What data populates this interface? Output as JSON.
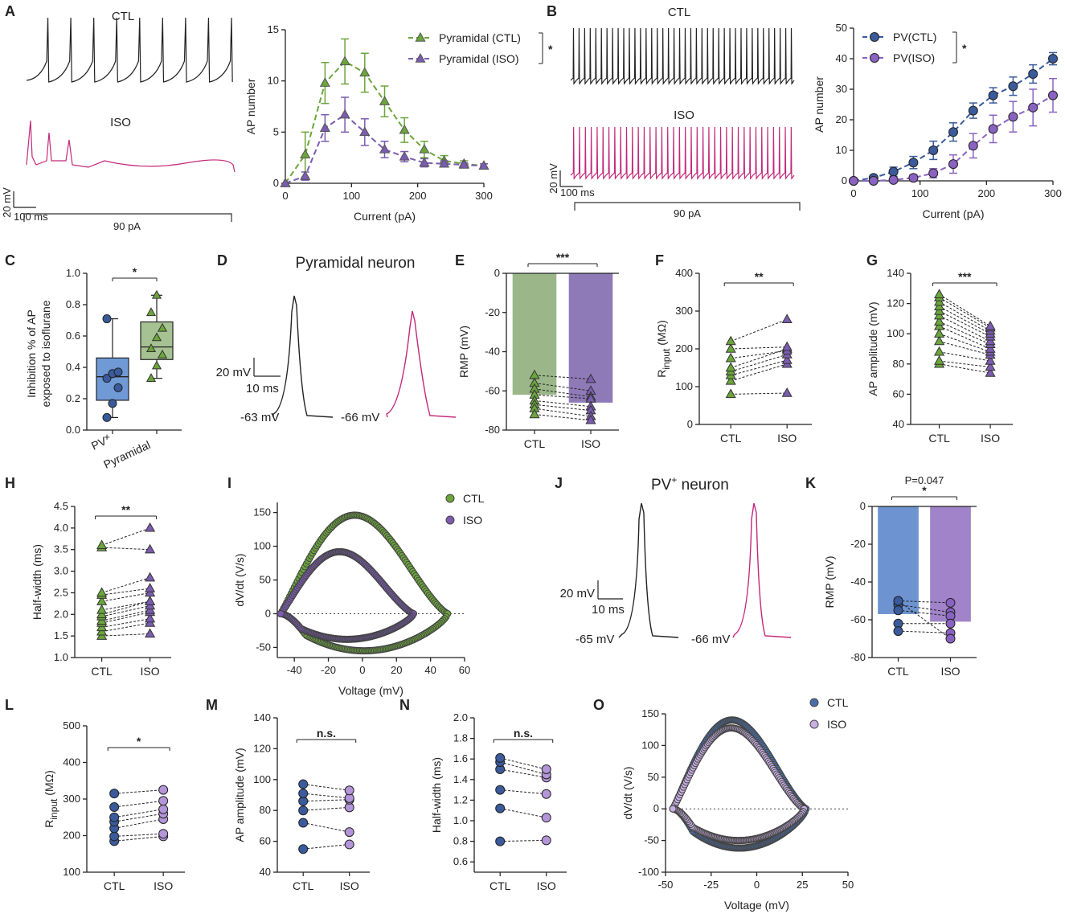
{
  "colors": {
    "ctl_pyr": "#6ba53b",
    "iso_pyr": "#7b5cb0",
    "ctl_pv": "#3a5a9b",
    "iso_pv": "#8a62c2",
    "trace_ctl": "#222222",
    "trace_iso": "#c2287a",
    "bar_ctl_pyr": "#9bb789",
    "bar_iso_pyr": "#8f7ab8",
    "bar_ctl_pv": "#6d93d0",
    "bar_iso_pv": "#a083c9",
    "box_pv": "#6f9ad6",
    "box_pyr": "#a6c293"
  },
  "panels": {
    "A": "A",
    "B": "B",
    "C": "C",
    "D": "D",
    "E": "E",
    "F": "F",
    "G": "G",
    "H": "H",
    "I": "I",
    "J": "J",
    "K": "K",
    "L": "L",
    "M": "M",
    "N": "N",
    "O": "O"
  },
  "traces": {
    "A": {
      "ctl": "CTL",
      "iso": "ISO",
      "scale_v": "20 mV",
      "scale_t": "100 ms",
      "step": "90 pA"
    },
    "B": {
      "ctl": "CTL",
      "iso": "ISO",
      "scale_v": "20 mV",
      "scale_t": "100 ms",
      "step": "90 pA"
    },
    "D": {
      "title": "Pyramidal neuron",
      "scale_v": "20 mV",
      "scale_t": "10 ms",
      "rmp_ctl": "-63 mV",
      "rmp_iso": "-66 mV"
    },
    "J": {
      "title_main": "PV",
      "title_sup": "+",
      "title_rest": " neuron",
      "scale_v": "20 mV",
      "scale_t": "10 ms",
      "rmp_ctl": "-65 mV",
      "rmp_iso": "-66 mV"
    }
  },
  "chart_data": [
    {
      "id": "A",
      "type": "line",
      "title": "",
      "xlabel": "Current (pA)",
      "ylabel": "AP number",
      "xlim": [
        0,
        300
      ],
      "ylim": [
        0,
        15
      ],
      "xticks": [
        0,
        100,
        200,
        300
      ],
      "yticks": [
        0,
        5,
        10,
        15
      ],
      "x": [
        0,
        30,
        60,
        90,
        120,
        150,
        180,
        210,
        240,
        270,
        300
      ],
      "series": [
        {
          "name": "Pyramidal (CTL)",
          "values": [
            0,
            2.8,
            9.8,
            11.9,
            10.8,
            8.0,
            5.2,
            3.3,
            2.2,
            1.9,
            1.7
          ],
          "err": [
            0,
            2.2,
            2.0,
            2.2,
            1.9,
            1.5,
            1.2,
            0.8,
            0.5,
            0.3,
            0.2
          ]
        },
        {
          "name": "Pyramidal (ISO)",
          "values": [
            0,
            0.7,
            5.4,
            6.7,
            5.0,
            3.3,
            2.6,
            2.0,
            1.9,
            1.8,
            1.7
          ],
          "err": [
            0,
            0.4,
            1.3,
            1.7,
            1.3,
            0.8,
            0.5,
            0.4,
            0.3,
            0.2,
            0.2
          ]
        }
      ],
      "significance": "*"
    },
    {
      "id": "B",
      "type": "line",
      "title": "",
      "xlabel": "Current (pA)",
      "ylabel": "AP number",
      "xlim": [
        0,
        300
      ],
      "ylim": [
        0,
        50
      ],
      "xticks": [
        0,
        100,
        200,
        300
      ],
      "yticks": [
        0,
        10,
        20,
        30,
        40,
        50
      ],
      "x": [
        0,
        30,
        60,
        90,
        120,
        150,
        180,
        210,
        240,
        270,
        300
      ],
      "series": [
        {
          "name": "PV(CTL)",
          "values": [
            0,
            1,
            3,
            6,
            10,
            16,
            23,
            28,
            31,
            35,
            40
          ],
          "err": [
            0,
            0.6,
            1.5,
            2,
            3,
            3,
            2.5,
            2.5,
            3,
            3,
            2
          ]
        },
        {
          "name": "PV(ISO)",
          "values": [
            0,
            0,
            0.3,
            1,
            2.5,
            5.5,
            11.5,
            17,
            21,
            24,
            28
          ],
          "err": [
            0,
            0,
            0.5,
            1,
            1.5,
            3,
            4,
            4.5,
            5,
            6,
            5.5
          ]
        }
      ],
      "significance": "*"
    },
    {
      "id": "C",
      "type": "box",
      "title": "",
      "xlabel": "",
      "ylabel_line1": "Inhibition % of AP",
      "ylabel_line2": "exposed to isoflurane",
      "ylim": [
        0,
        1
      ],
      "yticks": [
        "0.0",
        "0.2",
        "0.4",
        "0.6",
        "0.8",
        "1.0"
      ],
      "categories": [
        "PV",
        "Pyramidal"
      ],
      "category_sup": [
        "+",
        ""
      ],
      "boxes": [
        {
          "min": 0.08,
          "q1": 0.19,
          "median": 0.34,
          "q3": 0.46,
          "max": 0.71,
          "points": [
            0.08,
            0.17,
            0.27,
            0.33,
            0.36,
            0.37,
            0.71
          ]
        },
        {
          "min": 0.33,
          "q1": 0.45,
          "median": 0.53,
          "q3": 0.69,
          "max": 0.86,
          "points": [
            0.33,
            0.41,
            0.48,
            0.52,
            0.59,
            0.65,
            0.75,
            0.86
          ]
        }
      ],
      "significance": "*"
    },
    {
      "id": "E",
      "type": "bar",
      "title": "",
      "ylabel": "RMP (mV)",
      "ylim": [
        -80,
        0
      ],
      "yticks": [
        0,
        -20,
        -40,
        -60,
        -80
      ],
      "categories": [
        "CTL",
        "ISO"
      ],
      "values": [
        -62,
        -66
      ],
      "pairs": [
        [
          -52,
          -54
        ],
        [
          -56,
          -60
        ],
        [
          -59,
          -63
        ],
        [
          -62,
          -64
        ],
        [
          -65,
          -68
        ],
        [
          -67,
          -70
        ],
        [
          -69,
          -73
        ],
        [
          -72,
          -75
        ]
      ],
      "significance": "***"
    },
    {
      "id": "F",
      "type": "paired",
      "title": "",
      "ylabel_main": "R",
      "ylabel_sub": "input",
      "ylabel_unit": " (MΩ)",
      "ylim": [
        0,
        400
      ],
      "yticks": [
        0,
        100,
        200,
        300,
        400
      ],
      "categories": [
        "CTL",
        "ISO"
      ],
      "pairs": [
        [
          80,
          83
        ],
        [
          115,
          160
        ],
        [
          130,
          170
        ],
        [
          140,
          185
        ],
        [
          150,
          200
        ],
        [
          175,
          195
        ],
        [
          200,
          205
        ],
        [
          220,
          278
        ]
      ],
      "significance": "**"
    },
    {
      "id": "G",
      "type": "paired",
      "title": "",
      "ylabel": "AP amplitude  (mV)",
      "ylim": [
        40,
        140
      ],
      "yticks": [
        40,
        60,
        80,
        100,
        120,
        140
      ],
      "categories": [
        "CTL",
        "ISO"
      ],
      "pairs": [
        [
          80,
          74
        ],
        [
          82,
          78
        ],
        [
          88,
          82
        ],
        [
          95,
          86
        ],
        [
          100,
          88
        ],
        [
          105,
          90
        ],
        [
          108,
          93
        ],
        [
          112,
          95
        ],
        [
          115,
          98
        ],
        [
          118,
          100
        ],
        [
          121,
          102
        ],
        [
          124,
          104
        ],
        [
          126,
          105
        ]
      ],
      "significance": "***"
    },
    {
      "id": "H",
      "type": "paired",
      "title": "",
      "ylabel": "Half-width (ms)",
      "ylim": [
        1.0,
        4.5
      ],
      "yticks": [
        "1.0",
        "1.5",
        "2.0",
        "2.5",
        "3.0",
        "3.5",
        "4.0",
        "4.5"
      ],
      "categories": [
        "CTL",
        "ISO"
      ],
      "pairs": [
        [
          1.5,
          1.55
        ],
        [
          1.6,
          1.8
        ],
        [
          1.7,
          1.9
        ],
        [
          1.8,
          2.05
        ],
        [
          1.85,
          2.1
        ],
        [
          1.95,
          2.2
        ],
        [
          2.0,
          2.3
        ],
        [
          2.1,
          2.3
        ],
        [
          2.3,
          2.5
        ],
        [
          2.45,
          2.6
        ],
        [
          2.5,
          2.85
        ],
        [
          3.55,
          3.5
        ],
        [
          3.6,
          4.0
        ]
      ],
      "significance": "**"
    },
    {
      "id": "I",
      "type": "scatter",
      "title": "",
      "xlabel": "Voltage (mV)",
      "ylabel": "dV/dt (V/s)",
      "xlim": [
        -50,
        60
      ],
      "ylim": [
        -65,
        165
      ],
      "xticks": [
        -40,
        -20,
        0,
        20,
        40,
        60
      ],
      "yticks": [
        -50,
        0,
        50,
        100,
        150
      ],
      "series": [
        {
          "name": "CTL",
          "vmin": -48,
          "vmax": 50,
          "peak_up": 151,
          "peak_v": 2,
          "peak_down": -55,
          "down_v": 15
        },
        {
          "name": "ISO",
          "vmin": -48,
          "vmax": 30,
          "peak_up": 95,
          "peak_v": -13,
          "peak_down": -38,
          "down_v": 0
        }
      ]
    },
    {
      "id": "K",
      "type": "bar",
      "title": "",
      "ylabel": "RMP (mV)",
      "ylim": [
        -80,
        0
      ],
      "yticks": [
        0,
        -20,
        -40,
        -60,
        -80
      ],
      "categories": [
        "CTL",
        "ISO"
      ],
      "values": [
        -57,
        -61
      ],
      "pairs": [
        [
          -50,
          -51
        ],
        [
          -52,
          -56
        ],
        [
          -55,
          -58
        ],
        [
          -62,
          -62
        ],
        [
          -66,
          -67
        ],
        [
          -50,
          -70
        ]
      ],
      "significance": "*",
      "pvalue": "P=0.047"
    },
    {
      "id": "L",
      "type": "paired",
      "title": "",
      "ylabel_main": "R",
      "ylabel_sub": "input",
      "ylabel_unit": " (MΩ)",
      "ylim": [
        100,
        500
      ],
      "yticks": [
        100,
        200,
        300,
        400,
        500
      ],
      "categories": [
        "CTL",
        "ISO"
      ],
      "pairs": [
        [
          185,
          198
        ],
        [
          198,
          205
        ],
        [
          220,
          245
        ],
        [
          238,
          260
        ],
        [
          250,
          272
        ],
        [
          278,
          295
        ],
        [
          315,
          325
        ]
      ],
      "significance": "*"
    },
    {
      "id": "M",
      "type": "paired",
      "title": "",
      "ylabel": "AP amplitude  (mV)",
      "ylim": [
        40,
        140
      ],
      "yticks": [
        40,
        60,
        80,
        100,
        120,
        140
      ],
      "categories": [
        "CTL",
        "ISO"
      ],
      "pairs": [
        [
          55,
          58
        ],
        [
          72,
          66
        ],
        [
          80,
          82
        ],
        [
          86,
          87
        ],
        [
          91,
          88
        ],
        [
          97,
          93
        ]
      ],
      "significance": "n.s."
    },
    {
      "id": "N",
      "type": "paired",
      "title": "",
      "ylabel": "Half-width (ms)",
      "ylim": [
        0.5,
        2.0
      ],
      "yticks": [
        "0.6",
        "0.8",
        "1.0",
        "1.2",
        "1.4",
        "1.6",
        "1.8",
        "2.0"
      ],
      "categories": [
        "CTL",
        "ISO"
      ],
      "pairs": [
        [
          0.8,
          0.81
        ],
        [
          1.12,
          1.03
        ],
        [
          1.3,
          1.26
        ],
        [
          1.5,
          1.42
        ],
        [
          1.57,
          1.45
        ],
        [
          1.61,
          1.5
        ]
      ],
      "significance": "n.s."
    },
    {
      "id": "O",
      "type": "scatter",
      "title": "",
      "xlabel": "Voltage (mV)",
      "ylabel": "dV/dt (V/s)",
      "xlim": [
        -50,
        50
      ],
      "ylim": [
        -100,
        150
      ],
      "xticks": [
        -50,
        -25,
        0,
        25,
        50
      ],
      "yticks": [
        -100,
        -50,
        0,
        50,
        100,
        150
      ],
      "series": [
        {
          "name": "CTL",
          "vmin": -46,
          "vmax": 27,
          "peak_up": 145,
          "peak_v": -5,
          "peak_down": -62,
          "down_v": 5
        },
        {
          "name": "ISO",
          "vmin": -46,
          "vmax": 26,
          "peak_up": 132,
          "peak_v": -2,
          "peak_down": -50,
          "down_v": 0
        }
      ]
    }
  ]
}
